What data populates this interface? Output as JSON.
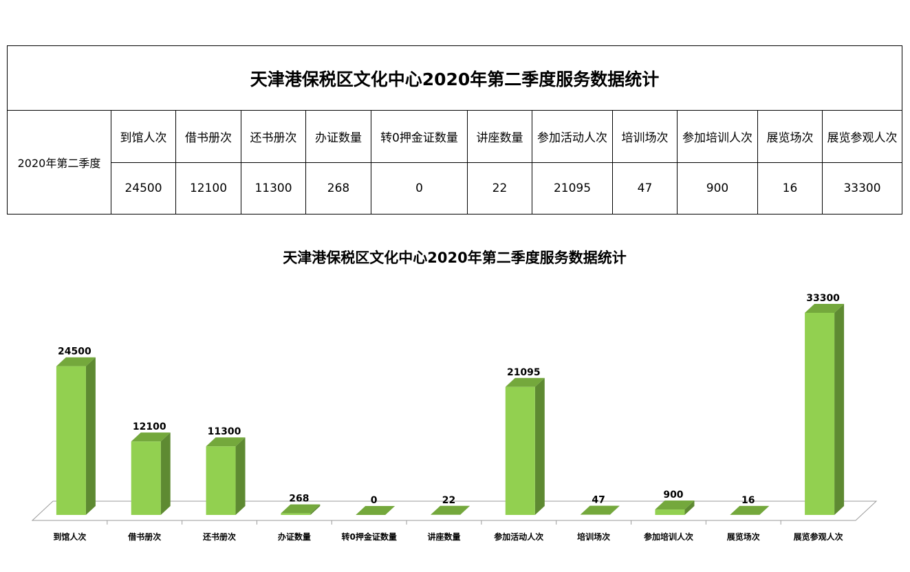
{
  "table": {
    "title": "天津港保税区文化中心2020年第二季度服务数据统计",
    "row_label": "2020年第二季度",
    "headers": [
      "到馆人次",
      "借书册次",
      "还书册次",
      "办证数量",
      "转0押金证数量",
      "讲座数量",
      "参加活动人次",
      "培训场次",
      "参加培训人次",
      "展览场次",
      "展览参观人次"
    ],
    "values": [
      "24500",
      "12100",
      "11300",
      "268",
      "0",
      "22",
      "21095",
      "47",
      "900",
      "16",
      "33300"
    ]
  },
  "chart_data": {
    "type": "bar",
    "title": "天津港保税区文化中心2020年第二季度服务数据统计",
    "categories": [
      "到馆人次",
      "借书册次",
      "还书册次",
      "办证数量",
      "转0押金证数量",
      "讲座数量",
      "参加活动人次",
      "培训场次",
      "参加培训人次",
      "展览场次",
      "展览参观人次"
    ],
    "values": [
      24500,
      12100,
      11300,
      268,
      0,
      22,
      21095,
      47,
      900,
      16,
      33300
    ],
    "ylim": [
      0,
      33300
    ],
    "grid": false,
    "legend": "none",
    "colors": {
      "bar_front": "#92D050",
      "bar_side": "#5E8A32",
      "bar_top": "#74A83C",
      "floor": "#9A9A9A"
    }
  }
}
